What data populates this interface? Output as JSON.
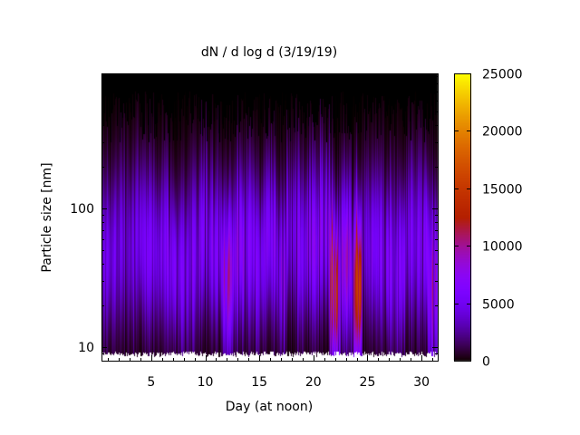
{
  "chart_data": {
    "type": "heatmap",
    "title": "dN / d log d (3/19/19)",
    "xlabel": "Day (at noon)",
    "ylabel": "Particle size [nm]",
    "xlim": [
      0.4,
      31.5
    ],
    "ylim": [
      8,
      940
    ],
    "yscale": "log",
    "xticks": [
      "5",
      "10",
      "15",
      "20",
      "25",
      "30"
    ],
    "xtick_values": [
      5,
      10,
      15,
      20,
      25,
      30
    ],
    "yticks": [
      "10",
      "100"
    ],
    "ytick_values": [
      10,
      100
    ],
    "colorbar": {
      "range": [
        0,
        25000
      ],
      "ticks": [
        "0",
        "5000",
        "10000",
        "15000",
        "20000",
        "25000"
      ],
      "tick_values": [
        0,
        5000,
        10000,
        15000,
        20000,
        25000
      ],
      "palette": "black-purple-red-orange-yellow"
    },
    "grid": false,
    "approx_daily_peak_concentration": [
      4500,
      5000,
      4800,
      5500,
      5200,
      6000,
      5600,
      5800,
      6200,
      5400,
      6500,
      9000,
      7000,
      6000,
      5500,
      6400,
      7500,
      5800,
      6200,
      6600,
      7400,
      14000,
      8000,
      13000,
      6200,
      5600,
      6000,
      5800,
      5600,
      6200,
      9000
    ],
    "approx_daily_peak_diameter_nm": [
      45,
      55,
      50,
      60,
      48,
      52,
      40,
      38,
      45,
      60,
      55,
      30,
      50,
      55,
      45,
      60,
      35,
      70,
      50,
      55,
      65,
      28,
      45,
      30,
      55,
      50,
      45,
      40,
      60,
      55,
      28
    ]
  }
}
